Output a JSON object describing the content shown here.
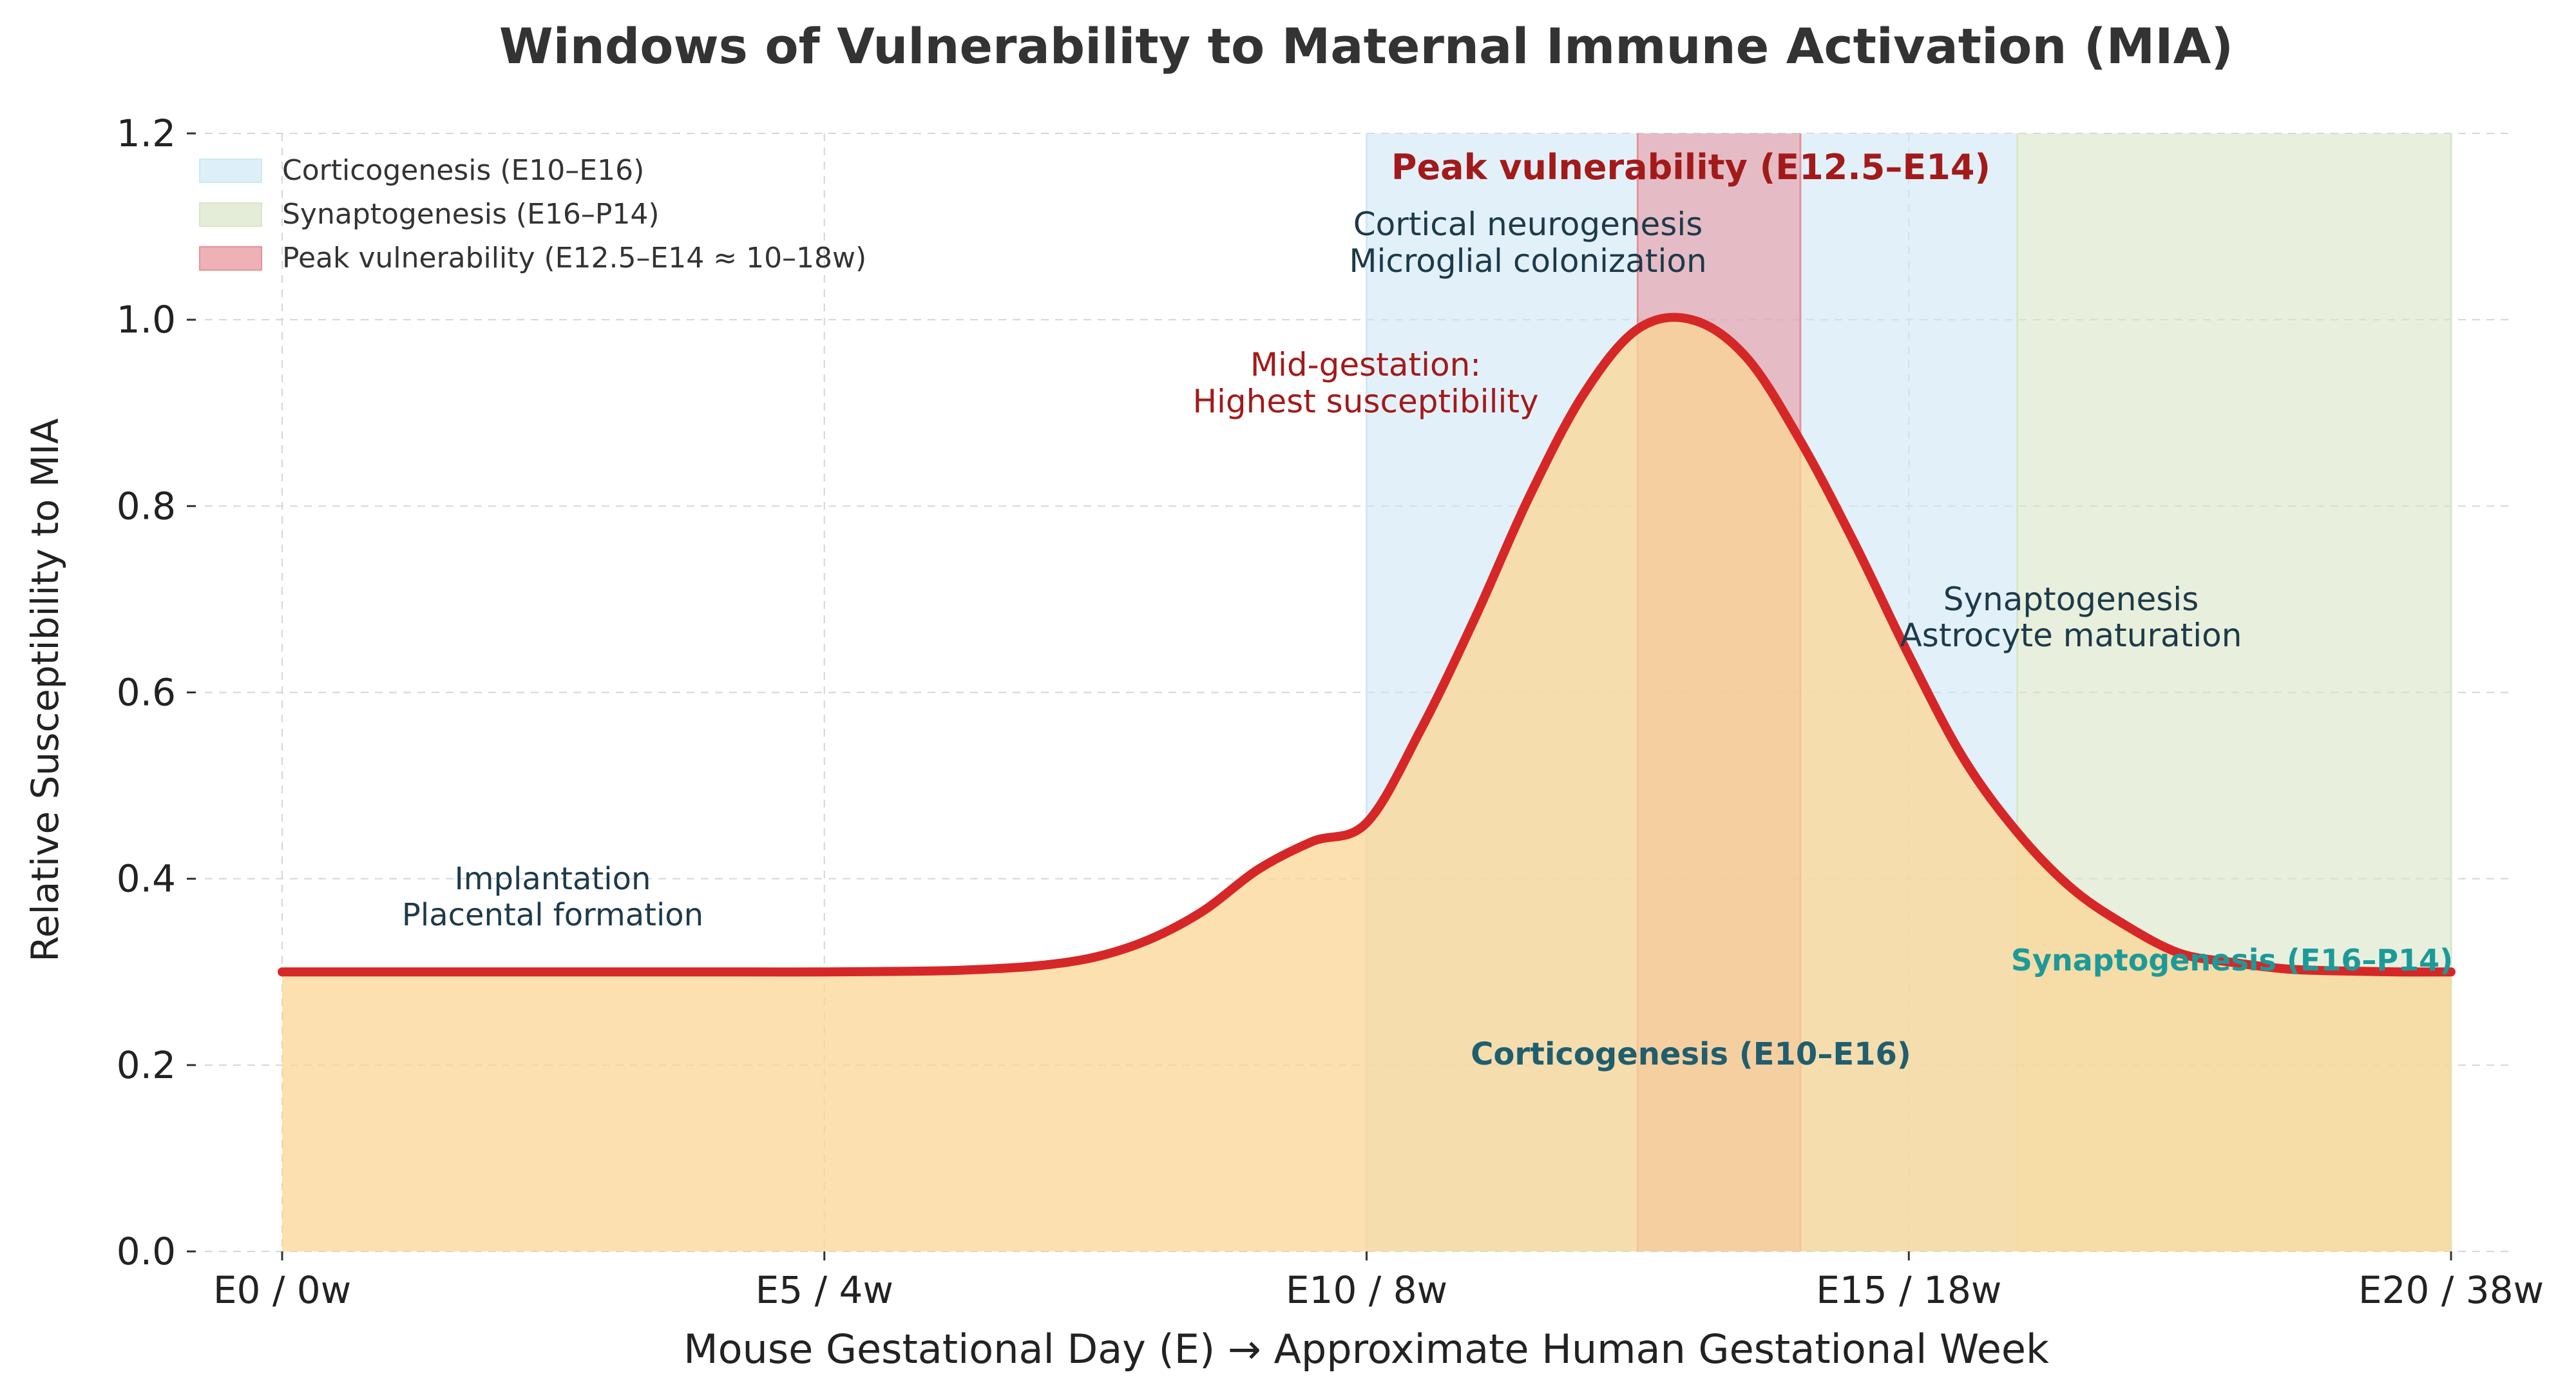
{
  "chart_data": {
    "type": "area",
    "title": "Windows of Vulnerability to Maternal Immune Activation (MIA)",
    "xlabel": "Mouse Gestational Day (E)  →  Approximate Human Gestational Week",
    "ylabel": "Relative Susceptibility to MIA",
    "xlim": [
      0,
      20
    ],
    "ylim": [
      0,
      1.2
    ],
    "grid": true,
    "legend_position": "top-left",
    "x_ticks": [
      {
        "value": 0,
        "label": "E0 / 0w"
      },
      {
        "value": 5,
        "label": "E5 / 4w"
      },
      {
        "value": 10,
        "label": "E10 / 8w"
      },
      {
        "value": 15,
        "label": "E15 / 18w"
      },
      {
        "value": 20,
        "label": "E20 / 38w"
      }
    ],
    "y_ticks": [
      {
        "value": 0.0,
        "label": "0.0"
      },
      {
        "value": 0.2,
        "label": "0.2"
      },
      {
        "value": 0.4,
        "label": "0.4"
      },
      {
        "value": 0.6,
        "label": "0.6"
      },
      {
        "value": 0.8,
        "label": "0.8"
      },
      {
        "value": 1.0,
        "label": "1.0"
      },
      {
        "value": 1.2,
        "label": "1.2"
      }
    ],
    "series": [
      {
        "color": "#d62728",
        "fill": "#fbd694",
        "x": [
          0,
          1,
          2,
          3,
          4,
          5,
          6,
          6.5,
          7,
          7.5,
          8,
          8.5,
          9,
          9.5,
          10,
          10.5,
          11,
          11.5,
          12,
          12.5,
          13,
          13.5,
          14,
          14.5,
          15,
          15.5,
          16,
          16.5,
          17,
          17.5,
          18,
          18.5,
          19,
          19.5,
          20
        ],
        "y": [
          0.3,
          0.3,
          0.3,
          0.3,
          0.3,
          0.3,
          0.301,
          0.303,
          0.307,
          0.316,
          0.335,
          0.366,
          0.41,
          0.44,
          0.46,
          0.56,
          0.68,
          0.81,
          0.92,
          0.99,
          1.0,
          0.96,
          0.87,
          0.76,
          0.64,
          0.53,
          0.45,
          0.39,
          0.35,
          0.32,
          0.31,
          0.303,
          0.301,
          0.3,
          0.3
        ]
      }
    ],
    "bands": [
      {
        "name": "Corticogenesis (E10–E16)",
        "from": 10,
        "to": 16,
        "color": "#cfe8f5"
      },
      {
        "name": "Synaptogenesis (E16–P14)",
        "from": 16,
        "to": 20,
        "color": "#d8e6c6"
      },
      {
        "name": "Peak vulnerability (E12.5–E14 ≈ 10–18w)",
        "from": 12.5,
        "to": 14,
        "color": "#e8909a"
      }
    ],
    "annotations": {
      "implantation_1": "Implantation",
      "implantation_2": "Placental formation",
      "cortical_1": "Cortical neurogenesis",
      "cortical_2": "Microglial colonization",
      "mid_1": "Mid-gestation:",
      "mid_2": "Highest susceptibility",
      "peak": "Peak vulnerability (E12.5–E14)",
      "synapto_1": "Synaptogenesis",
      "synapto_2": "Astrocyte maturation",
      "cortico_band": "Corticogenesis (E10–E16)",
      "synapto_band": "Synaptogenesis (E16–P14)"
    }
  }
}
